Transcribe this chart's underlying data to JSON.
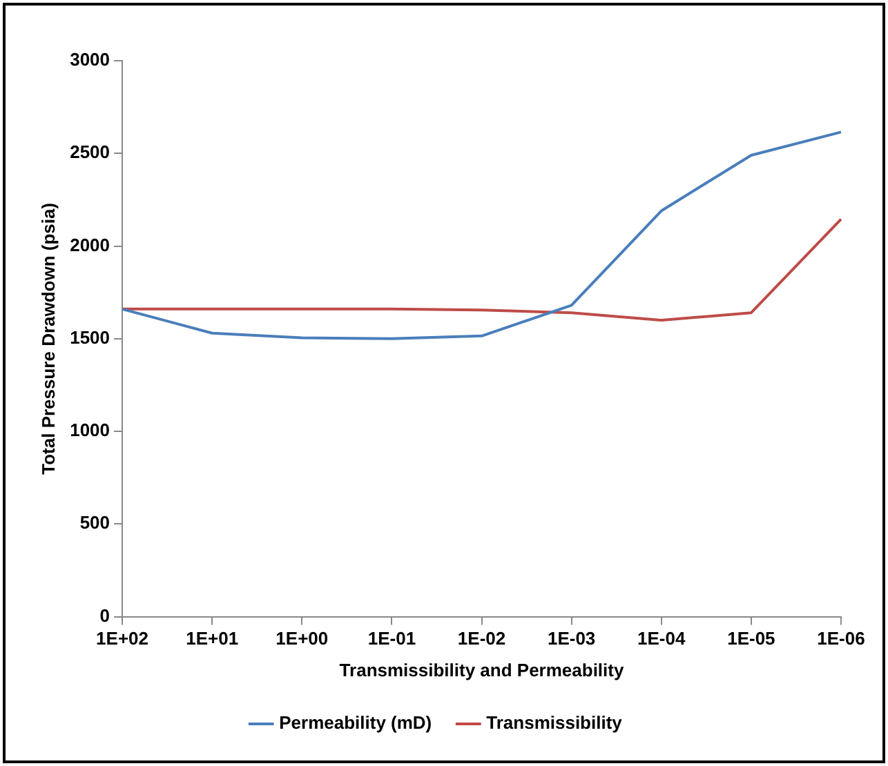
{
  "chart_data": {
    "type": "line",
    "xlabel": "Transmissibility and Permeability",
    "ylabel": "Total Pressure Drawdown (psia)",
    "categories": [
      "1E+02",
      "1E+01",
      "1E+00",
      "1E-01",
      "1E-02",
      "1E-03",
      "1E-04",
      "1E-05",
      "1E-06"
    ],
    "series": [
      {
        "name": "Permeability (mD)",
        "color": "#4a7ebb",
        "values": [
          1660,
          1530,
          1505,
          1500,
          1515,
          1680,
          2190,
          2490,
          2615
        ]
      },
      {
        "name": "Transmissibility",
        "color": "#be4b48",
        "values": [
          1660,
          1660,
          1660,
          1660,
          1655,
          1640,
          1600,
          1640,
          2145
        ]
      }
    ],
    "ylim": [
      0,
      3000
    ],
    "yticks": [
      0,
      500,
      1000,
      1500,
      2000,
      2500,
      3000
    ],
    "legend": "bottom",
    "marker": "none",
    "line_style": "solid"
  }
}
